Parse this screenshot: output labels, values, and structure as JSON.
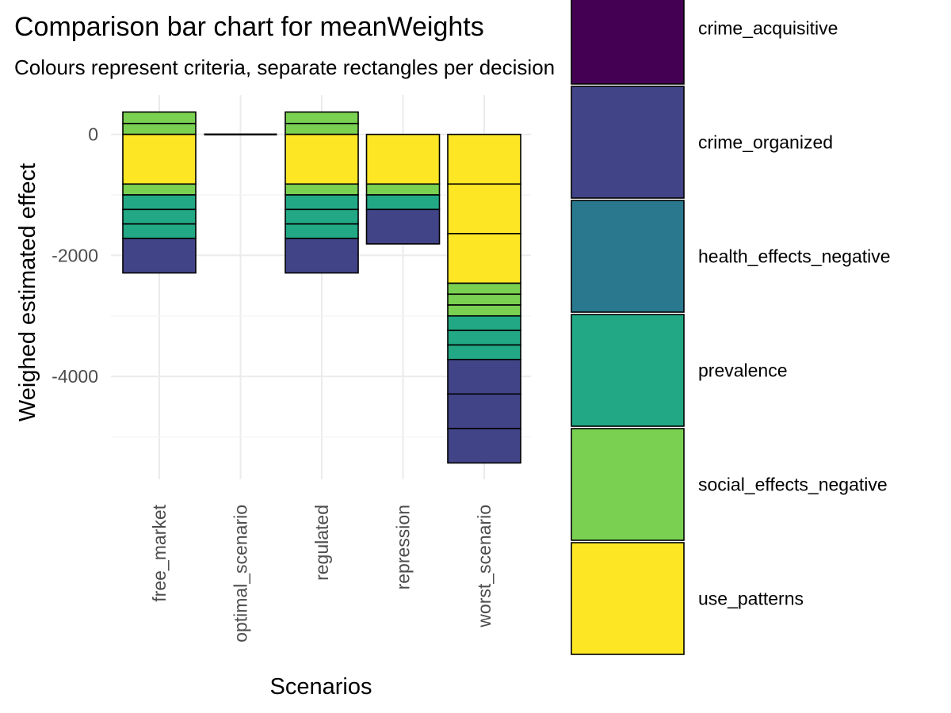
{
  "chart_data": {
    "type": "bar",
    "stacked": true,
    "title": "Comparison bar chart for meanWeights",
    "subtitle": "Colours represent criteria, separate rectangles per decision",
    "xlabel": "Scenarios",
    "ylabel": "Weighed estimated effect",
    "categories": [
      "free_market",
      "optimal_scenario",
      "regulated",
      "repression",
      "worst_scenario"
    ],
    "ylim": [
      -5700,
      650
    ],
    "yticks": [
      0,
      -2000,
      -4000
    ],
    "ytick_labels": [
      "0",
      "-2000",
      "-4000"
    ],
    "grid": true,
    "legend_position": "right",
    "legend": [
      {
        "label": "crime_acquisitive",
        "color": "#440154"
      },
      {
        "label": "crime_organized",
        "color": "#414487"
      },
      {
        "label": "health_effects_negative",
        "color": "#2A788E"
      },
      {
        "label": "prevalence",
        "color": "#22A884"
      },
      {
        "label": "social_effects_negative",
        "color": "#7AD151"
      },
      {
        "label": "use_patterns",
        "color": "#FDE725"
      }
    ],
    "segments": [
      {
        "category": "free_market",
        "criterion": "social_effects_negative",
        "ymin": 180,
        "ymax": 370
      },
      {
        "category": "free_market",
        "criterion": "social_effects_negative",
        "ymin": 0,
        "ymax": 180
      },
      {
        "category": "free_market",
        "criterion": "use_patterns",
        "ymin": -820,
        "ymax": 0
      },
      {
        "category": "free_market",
        "criterion": "social_effects_negative",
        "ymin": -1000,
        "ymax": -820
      },
      {
        "category": "free_market",
        "criterion": "prevalence",
        "ymin": -1240,
        "ymax": -1000
      },
      {
        "category": "free_market",
        "criterion": "prevalence",
        "ymin": -1480,
        "ymax": -1240
      },
      {
        "category": "free_market",
        "criterion": "prevalence",
        "ymin": -1720,
        "ymax": -1480
      },
      {
        "category": "free_market",
        "criterion": "crime_organized",
        "ymin": -2290,
        "ymax": -1720
      },
      {
        "category": "optimal_scenario",
        "criterion": "use_patterns",
        "ymin": 0,
        "ymax": 0
      },
      {
        "category": "regulated",
        "criterion": "social_effects_negative",
        "ymin": 180,
        "ymax": 370
      },
      {
        "category": "regulated",
        "criterion": "social_effects_negative",
        "ymin": 0,
        "ymax": 180
      },
      {
        "category": "regulated",
        "criterion": "use_patterns",
        "ymin": -820,
        "ymax": 0
      },
      {
        "category": "regulated",
        "criterion": "social_effects_negative",
        "ymin": -1000,
        "ymax": -820
      },
      {
        "category": "regulated",
        "criterion": "prevalence",
        "ymin": -1240,
        "ymax": -1000
      },
      {
        "category": "regulated",
        "criterion": "prevalence",
        "ymin": -1480,
        "ymax": -1240
      },
      {
        "category": "regulated",
        "criterion": "prevalence",
        "ymin": -1720,
        "ymax": -1480
      },
      {
        "category": "regulated",
        "criterion": "crime_organized",
        "ymin": -2290,
        "ymax": -1720
      },
      {
        "category": "repression",
        "criterion": "use_patterns",
        "ymin": -820,
        "ymax": 0
      },
      {
        "category": "repression",
        "criterion": "social_effects_negative",
        "ymin": -1000,
        "ymax": -820
      },
      {
        "category": "repression",
        "criterion": "prevalence",
        "ymin": -1240,
        "ymax": -1000
      },
      {
        "category": "repression",
        "criterion": "crime_organized",
        "ymin": -1810,
        "ymax": -1240
      },
      {
        "category": "worst_scenario",
        "criterion": "use_patterns",
        "ymin": -820,
        "ymax": 0
      },
      {
        "category": "worst_scenario",
        "criterion": "use_patterns",
        "ymin": -1640,
        "ymax": -820
      },
      {
        "category": "worst_scenario",
        "criterion": "use_patterns",
        "ymin": -2460,
        "ymax": -1640
      },
      {
        "category": "worst_scenario",
        "criterion": "social_effects_negative",
        "ymin": -2640,
        "ymax": -2460
      },
      {
        "category": "worst_scenario",
        "criterion": "social_effects_negative",
        "ymin": -2820,
        "ymax": -2640
      },
      {
        "category": "worst_scenario",
        "criterion": "social_effects_negative",
        "ymin": -3000,
        "ymax": -2820
      },
      {
        "category": "worst_scenario",
        "criterion": "prevalence",
        "ymin": -3240,
        "ymax": -3000
      },
      {
        "category": "worst_scenario",
        "criterion": "prevalence",
        "ymin": -3480,
        "ymax": -3240
      },
      {
        "category": "worst_scenario",
        "criterion": "prevalence",
        "ymin": -3720,
        "ymax": -3480
      },
      {
        "category": "worst_scenario",
        "criterion": "crime_organized",
        "ymin": -4290,
        "ymax": -3720
      },
      {
        "category": "worst_scenario",
        "criterion": "crime_organized",
        "ymin": -4860,
        "ymax": -4290
      },
      {
        "category": "worst_scenario",
        "criterion": "crime_organized",
        "ymin": -5430,
        "ymax": -4860
      }
    ]
  }
}
